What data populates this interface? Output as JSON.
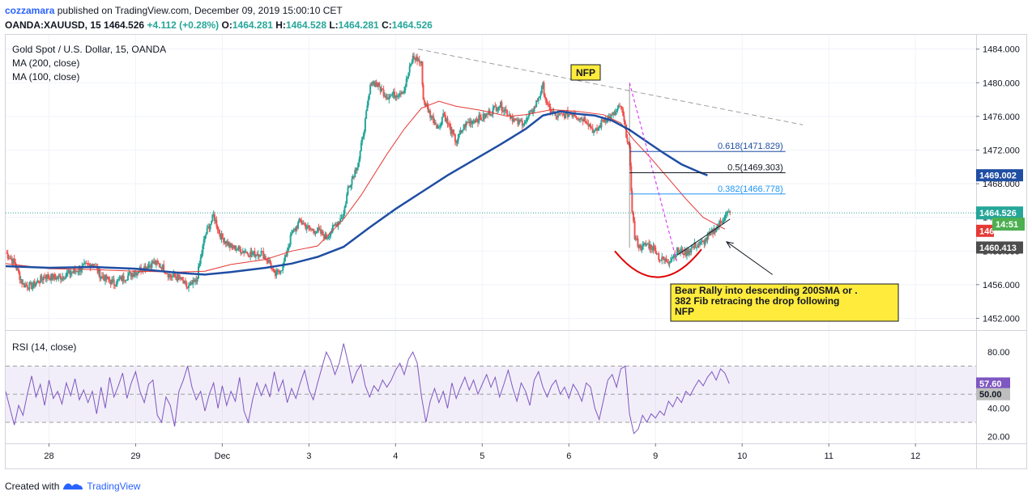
{
  "header": {
    "user": "cozzamara",
    "published_text": "published on TradingView.com, December 09, 2019 15:00:10 CET",
    "symbol": "OANDA:XAUUSD, 15",
    "last": "1464.526",
    "change": "+4.112 (+0.28%)",
    "o_label": "O:",
    "o": "1464.281",
    "h_label": "H:",
    "h": "1464.528",
    "l_label": "L:",
    "l": "1464.281",
    "c_label": "C:",
    "c": "1464.526"
  },
  "legend": {
    "title": "Gold Spot / U.S. Dollar, 15, OANDA",
    "ma200": "MA (200, close)",
    "ma100": "MA (100, close)",
    "rsi": "RSI (14, close)"
  },
  "colors": {
    "up": "#26a69a",
    "down": "#ef5350",
    "ma200": "#1f4ea3",
    "ma100": "#e53935",
    "rsi": "#7e57c2",
    "fib": "#2196f3"
  },
  "annotations": {
    "nfp": "NFP",
    "note": "Bear Rally into descending 200SMA or .382 Fib retracing the drop following NFP"
  },
  "price_badges": {
    "last": "1464.526",
    "ma200": "1469.002",
    "timer": "14:51",
    "ma100": "146",
    "low": "1460.413"
  },
  "rsi_badges": {
    "rsi": "57.60",
    "mid": "50.00"
  },
  "footer": {
    "created_with": "Created with",
    "brand": "TradingView"
  },
  "chart_data": {
    "type": "line",
    "title": "Gold Spot / U.S. Dollar, 15, OANDA",
    "x_ticks": [
      {
        "t": 0.5,
        "label": "28"
      },
      {
        "t": 1.5,
        "label": "29"
      },
      {
        "t": 2.5,
        "label": "Dec"
      },
      {
        "t": 3.5,
        "label": "3"
      },
      {
        "t": 4.5,
        "label": "4"
      },
      {
        "t": 5.5,
        "label": "5"
      },
      {
        "t": 6.5,
        "label": "6"
      },
      {
        "t": 7.5,
        "label": "9"
      },
      {
        "t": 8.5,
        "label": "10"
      },
      {
        "t": 9.5,
        "label": "11"
      },
      {
        "t": 10.5,
        "label": "12"
      }
    ],
    "xlim": [
      0,
      11.2
    ],
    "ylim": [
      1450.6,
      1485.7
    ],
    "y_ticks": [
      1452,
      1456,
      1460,
      1464,
      1468,
      1472,
      1476,
      1480,
      1484
    ],
    "y_tick_labels": [
      "1452.000",
      "1456.000",
      "1460.000",
      "1464.000",
      "1468.000",
      "1472.000",
      "1476.000",
      "1480.000",
      "1484.000"
    ],
    "price": [
      [
        0.0,
        1459.8
      ],
      [
        0.1,
        1458.6
      ],
      [
        0.2,
        1456.0
      ],
      [
        0.3,
        1455.8
      ],
      [
        0.45,
        1457.0
      ],
      [
        0.6,
        1456.8
      ],
      [
        0.8,
        1457.6
      ],
      [
        1.0,
        1458.6
      ],
      [
        1.1,
        1457.0
      ],
      [
        1.25,
        1456.2
      ],
      [
        1.4,
        1457.0
      ],
      [
        1.55,
        1457.8
      ],
      [
        1.7,
        1458.6
      ],
      [
        1.8,
        1458.2
      ],
      [
        1.9,
        1457.0
      ],
      [
        2.0,
        1456.8
      ],
      [
        2.1,
        1455.6
      ],
      [
        2.2,
        1456.4
      ],
      [
        2.3,
        1461.8
      ],
      [
        2.4,
        1464.2
      ],
      [
        2.48,
        1461.8
      ],
      [
        2.6,
        1460.5
      ],
      [
        2.75,
        1460.0
      ],
      [
        2.85,
        1459.6
      ],
      [
        2.95,
        1459.8
      ],
      [
        3.05,
        1458.6
      ],
      [
        3.1,
        1457.0
      ],
      [
        3.2,
        1458.2
      ],
      [
        3.3,
        1462.0
      ],
      [
        3.4,
        1463.6
      ],
      [
        3.5,
        1462.6
      ],
      [
        3.6,
        1462.4
      ],
      [
        3.7,
        1461.6
      ],
      [
        3.8,
        1463.0
      ],
      [
        3.9,
        1464.4
      ],
      [
        3.95,
        1467.4
      ],
      [
        4.02,
        1469.2
      ],
      [
        4.08,
        1471.0
      ],
      [
        4.15,
        1475.4
      ],
      [
        4.22,
        1480.2
      ],
      [
        4.3,
        1479.6
      ],
      [
        4.4,
        1478.4
      ],
      [
        4.5,
        1478.6
      ],
      [
        4.6,
        1479.2
      ],
      [
        4.65,
        1481.2
      ],
      [
        4.7,
        1483.0
      ],
      [
        4.75,
        1482.8
      ],
      [
        4.8,
        1482.2
      ],
      [
        4.82,
        1478.0
      ],
      [
        4.9,
        1476.2
      ],
      [
        5.0,
        1474.6
      ],
      [
        5.05,
        1476.4
      ],
      [
        5.15,
        1474.0
      ],
      [
        5.2,
        1473.0
      ],
      [
        5.3,
        1475.0
      ],
      [
        5.4,
        1475.6
      ],
      [
        5.5,
        1475.8
      ],
      [
        5.6,
        1476.6
      ],
      [
        5.7,
        1477.4
      ],
      [
        5.8,
        1476.4
      ],
      [
        5.9,
        1475.2
      ],
      [
        6.0,
        1475.4
      ],
      [
        6.1,
        1477.0
      ],
      [
        6.2,
        1479.6
      ],
      [
        6.25,
        1477.2
      ],
      [
        6.35,
        1476.0
      ],
      [
        6.45,
        1476.2
      ],
      [
        6.55,
        1476.4
      ],
      [
        6.6,
        1476.0
      ],
      [
        6.7,
        1475.6
      ],
      [
        6.8,
        1474.0
      ],
      [
        6.9,
        1475.6
      ],
      [
        7.0,
        1476.0
      ],
      [
        7.1,
        1477.2
      ],
      [
        7.2,
        1472.0
      ],
      [
        7.23,
        1465.0
      ],
      [
        7.26,
        1461.6
      ],
      [
        7.32,
        1460.4
      ],
      [
        7.4,
        1460.8
      ],
      [
        7.5,
        1460.2
      ],
      [
        7.55,
        1459.0
      ],
      [
        7.65,
        1458.8
      ],
      [
        7.75,
        1460.0
      ],
      [
        7.85,
        1459.8
      ],
      [
        7.95,
        1460.6
      ],
      [
        8.05,
        1461.0
      ],
      [
        8.15,
        1462.2
      ],
      [
        8.25,
        1463.4
      ],
      [
        8.32,
        1464.4
      ],
      [
        8.36,
        1464.5
      ]
    ],
    "ma200": [
      [
        0.0,
        1458.2
      ],
      [
        0.5,
        1458.0
      ],
      [
        1.0,
        1458.1
      ],
      [
        1.5,
        1457.9
      ],
      [
        2.0,
        1457.4
      ],
      [
        2.3,
        1457.2
      ],
      [
        2.6,
        1457.5
      ],
      [
        3.0,
        1458.0
      ],
      [
        3.3,
        1458.5
      ],
      [
        3.6,
        1459.3
      ],
      [
        3.9,
        1460.5
      ],
      [
        4.2,
        1462.8
      ],
      [
        4.5,
        1465.0
      ],
      [
        4.8,
        1467.0
      ],
      [
        5.1,
        1469.0
      ],
      [
        5.4,
        1470.8
      ],
      [
        5.7,
        1472.6
      ],
      [
        6.0,
        1474.5
      ],
      [
        6.2,
        1476.1
      ],
      [
        6.4,
        1476.6
      ],
      [
        6.6,
        1476.3
      ],
      [
        6.8,
        1476.1
      ],
      [
        7.0,
        1475.5
      ],
      [
        7.2,
        1474.4
      ],
      [
        7.4,
        1473.0
      ],
      [
        7.6,
        1471.6
      ],
      [
        7.8,
        1470.3
      ],
      [
        8.0,
        1469.4
      ],
      [
        8.1,
        1469.0
      ]
    ],
    "ma100": [
      [
        0.0,
        1458.5
      ],
      [
        0.5,
        1457.9
      ],
      [
        1.0,
        1457.8
      ],
      [
        1.5,
        1457.6
      ],
      [
        2.0,
        1457.5
      ],
      [
        2.3,
        1457.6
      ],
      [
        2.6,
        1458.4
      ],
      [
        3.0,
        1459.0
      ],
      [
        3.3,
        1460.0
      ],
      [
        3.6,
        1460.6
      ],
      [
        3.9,
        1463.8
      ],
      [
        4.1,
        1466.6
      ],
      [
        4.4,
        1471.5
      ],
      [
        4.6,
        1474.5
      ],
      [
        4.8,
        1477.0
      ],
      [
        5.0,
        1477.8
      ],
      [
        5.2,
        1477.2
      ],
      [
        5.5,
        1476.7
      ],
      [
        5.8,
        1476.0
      ],
      [
        6.0,
        1476.2
      ],
      [
        6.3,
        1476.8
      ],
      [
        6.6,
        1476.6
      ],
      [
        6.9,
        1476.2
      ],
      [
        7.1,
        1475.2
      ],
      [
        7.25,
        1473.2
      ],
      [
        7.45,
        1471.0
      ],
      [
        7.65,
        1468.6
      ],
      [
        7.85,
        1466.2
      ],
      [
        8.05,
        1464.0
      ],
      [
        8.3,
        1462.6
      ]
    ],
    "fib_levels": [
      {
        "label": "0.618(1471.829)",
        "value": 1471.829
      },
      {
        "label": "0.5(1469.303)",
        "value": 1469.303
      },
      {
        "label": "0.382(1466.778)",
        "value": 1466.778
      }
    ],
    "fib_x": [
      7.2,
      9.0
    ],
    "trendline": [
      [
        4.76,
        1484.0
      ],
      [
        9.2,
        1475.0
      ]
    ],
    "nfp_line": [
      [
        7.2,
        1480.0
      ],
      [
        7.75,
        1458.6
      ]
    ],
    "arc": [
      [
        7.03,
        1460.0
      ],
      [
        7.53,
        1455.6
      ],
      [
        8.03,
        1460.2
      ]
    ],
    "arrow": [
      [
        8.85,
        1457.2
      ],
      [
        8.32,
        1461.1
      ]
    ],
    "support_line": [
      [
        7.75,
        1459.5
      ],
      [
        8.36,
        1463.8
      ]
    ],
    "last_price": 1464.526,
    "rsi": {
      "ylim": [
        15,
        95
      ],
      "y_ticks": [
        20,
        40,
        50,
        80
      ],
      "y_tick_labels": [
        "20.00",
        "40.00",
        "50.00",
        "80.00"
      ],
      "levels": [
        30,
        50,
        70
      ],
      "values": [
        [
          0.0,
          52
        ],
        [
          0.05,
          40
        ],
        [
          0.1,
          28
        ],
        [
          0.15,
          42
        ],
        [
          0.2,
          35
        ],
        [
          0.25,
          50
        ],
        [
          0.3,
          63
        ],
        [
          0.35,
          48
        ],
        [
          0.4,
          57
        ],
        [
          0.45,
          42
        ],
        [
          0.5,
          60
        ],
        [
          0.55,
          47
        ],
        [
          0.6,
          52
        ],
        [
          0.65,
          43
        ],
        [
          0.7,
          58
        ],
        [
          0.75,
          49
        ],
        [
          0.8,
          61
        ],
        [
          0.85,
          46
        ],
        [
          0.9,
          53
        ],
        [
          0.95,
          44
        ],
        [
          1.0,
          52
        ],
        [
          1.05,
          36
        ],
        [
          1.1,
          55
        ],
        [
          1.15,
          40
        ],
        [
          1.2,
          62
        ],
        [
          1.25,
          48
        ],
        [
          1.3,
          56
        ],
        [
          1.35,
          65
        ],
        [
          1.4,
          47
        ],
        [
          1.45,
          58
        ],
        [
          1.5,
          66
        ],
        [
          1.55,
          52
        ],
        [
          1.6,
          44
        ],
        [
          1.65,
          57
        ],
        [
          1.7,
          60
        ],
        [
          1.75,
          35
        ],
        [
          1.8,
          30
        ],
        [
          1.85,
          48
        ],
        [
          1.9,
          42
        ],
        [
          1.95,
          27
        ],
        [
          2.0,
          52
        ],
        [
          2.05,
          60
        ],
        [
          2.1,
          70
        ],
        [
          2.15,
          55
        ],
        [
          2.2,
          46
        ],
        [
          2.25,
          52
        ],
        [
          2.3,
          38
        ],
        [
          2.35,
          50
        ],
        [
          2.4,
          58
        ],
        [
          2.45,
          40
        ],
        [
          2.5,
          56
        ],
        [
          2.55,
          42
        ],
        [
          2.6,
          52
        ],
        [
          2.65,
          45
        ],
        [
          2.7,
          62
        ],
        [
          2.75,
          38
        ],
        [
          2.8,
          30
        ],
        [
          2.85,
          46
        ],
        [
          2.9,
          58
        ],
        [
          2.95,
          49
        ],
        [
          3.0,
          57
        ],
        [
          3.05,
          48
        ],
        [
          3.1,
          66
        ],
        [
          3.15,
          52
        ],
        [
          3.2,
          60
        ],
        [
          3.25,
          44
        ],
        [
          3.3,
          54
        ],
        [
          3.35,
          47
        ],
        [
          3.4,
          58
        ],
        [
          3.45,
          67
        ],
        [
          3.5,
          53
        ],
        [
          3.55,
          46
        ],
        [
          3.6,
          58
        ],
        [
          3.65,
          69
        ],
        [
          3.7,
          80
        ],
        [
          3.75,
          74
        ],
        [
          3.8,
          64
        ],
        [
          3.85,
          72
        ],
        [
          3.9,
          86
        ],
        [
          3.95,
          73
        ],
        [
          4.0,
          58
        ],
        [
          4.05,
          66
        ],
        [
          4.1,
          71
        ],
        [
          4.15,
          56
        ],
        [
          4.2,
          48
        ],
        [
          4.25,
          56
        ],
        [
          4.3,
          52
        ],
        [
          4.35,
          60
        ],
        [
          4.4,
          55
        ],
        [
          4.45,
          60
        ],
        [
          4.5,
          67
        ],
        [
          4.55,
          72
        ],
        [
          4.6,
          64
        ],
        [
          4.65,
          75
        ],
        [
          4.7,
          80
        ],
        [
          4.75,
          72
        ],
        [
          4.8,
          48
        ],
        [
          4.85,
          30
        ],
        [
          4.9,
          45
        ],
        [
          4.95,
          54
        ],
        [
          5.0,
          44
        ],
        [
          5.05,
          52
        ],
        [
          5.1,
          40
        ],
        [
          5.15,
          58
        ],
        [
          5.2,
          47
        ],
        [
          5.25,
          55
        ],
        [
          5.3,
          62
        ],
        [
          5.35,
          53
        ],
        [
          5.4,
          60
        ],
        [
          5.45,
          50
        ],
        [
          5.5,
          57
        ],
        [
          5.55,
          64
        ],
        [
          5.6,
          55
        ],
        [
          5.65,
          62
        ],
        [
          5.7,
          48
        ],
        [
          5.75,
          57
        ],
        [
          5.8,
          67
        ],
        [
          5.85,
          55
        ],
        [
          5.9,
          45
        ],
        [
          5.95,
          58
        ],
        [
          6.0,
          52
        ],
        [
          6.05,
          42
        ],
        [
          6.1,
          60
        ],
        [
          6.15,
          66
        ],
        [
          6.2,
          55
        ],
        [
          6.25,
          48
        ],
        [
          6.3,
          56
        ],
        [
          6.35,
          60
        ],
        [
          6.4,
          50
        ],
        [
          6.45,
          55
        ],
        [
          6.5,
          47
        ],
        [
          6.55,
          57
        ],
        [
          6.6,
          52
        ],
        [
          6.65,
          45
        ],
        [
          6.7,
          58
        ],
        [
          6.75,
          55
        ],
        [
          6.8,
          40
        ],
        [
          6.85,
          32
        ],
        [
          6.9,
          46
        ],
        [
          6.95,
          60
        ],
        [
          7.0,
          64
        ],
        [
          7.05,
          55
        ],
        [
          7.1,
          68
        ],
        [
          7.15,
          70
        ],
        [
          7.2,
          36
        ],
        [
          7.25,
          22
        ],
        [
          7.3,
          25
        ],
        [
          7.35,
          35
        ],
        [
          7.4,
          30
        ],
        [
          7.45,
          36
        ],
        [
          7.5,
          33
        ],
        [
          7.55,
          38
        ],
        [
          7.6,
          35
        ],
        [
          7.65,
          45
        ],
        [
          7.7,
          41
        ],
        [
          7.75,
          48
        ],
        [
          7.8,
          44
        ],
        [
          7.85,
          52
        ],
        [
          7.9,
          49
        ],
        [
          7.95,
          55
        ],
        [
          8.0,
          60
        ],
        [
          8.05,
          56
        ],
        [
          8.1,
          62
        ],
        [
          8.15,
          66
        ],
        [
          8.2,
          60
        ],
        [
          8.25,
          68
        ],
        [
          8.3,
          65
        ],
        [
          8.35,
          57.6
        ]
      ]
    }
  }
}
